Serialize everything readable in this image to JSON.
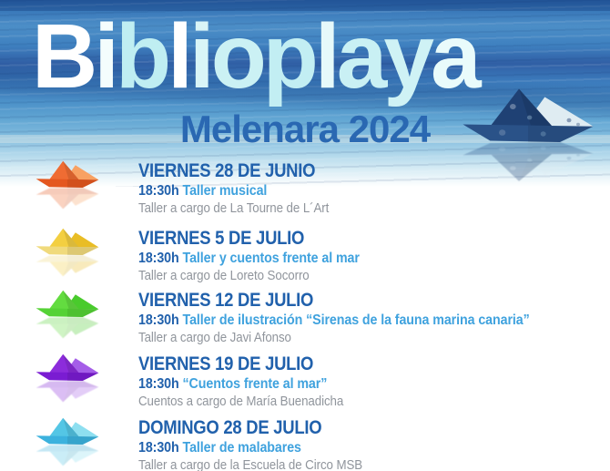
{
  "header": {
    "title": "Biblioplaya",
    "title_letters": [
      {
        "ch": "B",
        "color": "#ffffff"
      },
      {
        "ch": "i",
        "color": "#f4fdfd"
      },
      {
        "ch": "b",
        "color": "#bfeef2"
      },
      {
        "ch": "l",
        "color": "#ffffff"
      },
      {
        "ch": "i",
        "color": "#d9f5f7"
      },
      {
        "ch": "o",
        "color": "#cbf1f4"
      },
      {
        "ch": "p",
        "color": "#c2eef3"
      },
      {
        "ch": "l",
        "color": "#e6f9fa"
      },
      {
        "ch": "a",
        "color": "#c9f0f4"
      },
      {
        "ch": "y",
        "color": "#cff2f5"
      },
      {
        "ch": "a",
        "color": "#e9fbfb"
      }
    ],
    "subtitle": "Melenara 2024",
    "subtitle_color": "#2a68b2",
    "boat_icon": "dark-blue-paper-boat",
    "boat_palette": {
      "flap": "#dfecf2",
      "sail": "#1f4174",
      "hull": "#2a5288"
    }
  },
  "palette": {
    "date_blue": "#2161ac",
    "title_lightblue": "#3fa2de",
    "detail_gray": "#90959c"
  },
  "events": [
    {
      "date": "VIERNES 28 DE JUNIO",
      "time": "18:30h",
      "title": "Taller musical",
      "detail": "Taller a cargo de La Tourne de L´Art",
      "boat_icon": "orange-paper-boat",
      "boat": {
        "flap": "#f8a162",
        "sail": "#ef6c33",
        "hull": "#e4571f"
      }
    },
    {
      "date": "VIERNES 5 DE JULIO",
      "time": "18:30h",
      "title": "Taller y cuentos frente al mar",
      "detail": "Taller a cargo de Loreto Socorro",
      "boat_icon": "yellow-paper-boat",
      "boat": {
        "flap": "#e9bd25",
        "sail": "#f3cf41",
        "hull": "#f0da7c"
      }
    },
    {
      "date": "VIERNES 12 DE JULIO",
      "time": "18:30h",
      "title": "Taller de ilustración “Sirenas de la fauna marina canaria”",
      "detail": "Taller a cargo de Javi Afonso",
      "boat_icon": "green-paper-boat",
      "boat": {
        "flap": "#49cb2c",
        "sail": "#63dc40",
        "hull": "#55d236"
      }
    },
    {
      "date": "VIERNES 19 DE JULIO",
      "time": "18:30h",
      "title": "“Cuentos frente al mar”",
      "detail": "Cuentos a cargo de María Buenadicha",
      "boat_icon": "purple-paper-boat",
      "boat": {
        "flap": "#a55ee8",
        "sail": "#8c2cdb",
        "hull": "#7a1cd2"
      }
    },
    {
      "date": "DOMINGO 28 DE JULIO",
      "time": "18:30h",
      "title": "Taller de malabares",
      "detail": "Taller a cargo de la Escuela de Circo MSB",
      "boat_icon": "light-blue-paper-boat",
      "boat": {
        "flap": "#8edff0",
        "sail": "#54c6e5",
        "hull": "#3cb2de"
      }
    }
  ]
}
